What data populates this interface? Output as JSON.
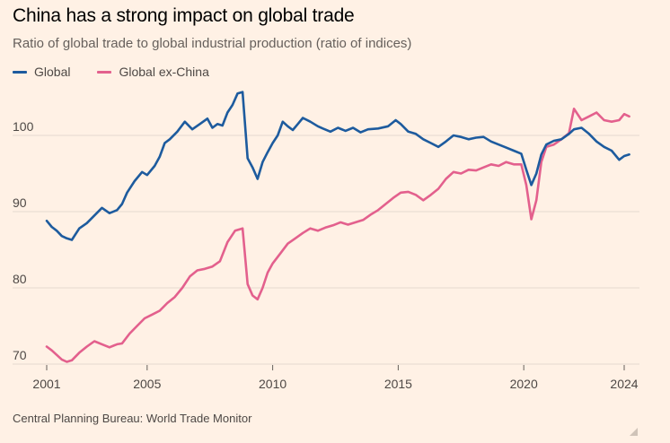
{
  "chart_data": {
    "type": "line",
    "title": "China has a strong impact on global trade",
    "subtitle": "Ratio of global trade to global industrial production (ratio of indices)",
    "source": "Central Planning Bureau: World Trade Monitor",
    "xlabel": "",
    "ylabel": "",
    "xlim": [
      2001,
      2024.2
    ],
    "ylim": [
      70,
      106
    ],
    "x_ticks": [
      "2001",
      "2005",
      "2010",
      "2015",
      "2020",
      "2024"
    ],
    "y_ticks": [
      "70",
      "80",
      "90",
      "100"
    ],
    "grid": true,
    "legend_position": "top-left",
    "series": [
      {
        "name": "Global",
        "color": "#1d5b9e",
        "points": [
          [
            2001.0,
            88.8
          ],
          [
            2001.2,
            88.0
          ],
          [
            2001.4,
            87.5
          ],
          [
            2001.6,
            86.8
          ],
          [
            2001.8,
            86.5
          ],
          [
            2002.0,
            86.3
          ],
          [
            2002.3,
            87.8
          ],
          [
            2002.6,
            88.5
          ],
          [
            2002.9,
            89.5
          ],
          [
            2003.2,
            90.5
          ],
          [
            2003.5,
            89.8
          ],
          [
            2003.8,
            90.2
          ],
          [
            2004.0,
            91.0
          ],
          [
            2004.2,
            92.5
          ],
          [
            2004.5,
            94.0
          ],
          [
            2004.8,
            95.2
          ],
          [
            2005.0,
            94.8
          ],
          [
            2005.3,
            96.0
          ],
          [
            2005.5,
            97.2
          ],
          [
            2005.7,
            99.0
          ],
          [
            2005.9,
            99.5
          ],
          [
            2006.2,
            100.5
          ],
          [
            2006.5,
            101.8
          ],
          [
            2006.8,
            100.8
          ],
          [
            2007.1,
            101.5
          ],
          [
            2007.4,
            102.2
          ],
          [
            2007.6,
            101.0
          ],
          [
            2007.8,
            101.5
          ],
          [
            2008.0,
            101.3
          ],
          [
            2008.2,
            103.0
          ],
          [
            2008.4,
            104.0
          ],
          [
            2008.6,
            105.5
          ],
          [
            2008.8,
            105.7
          ],
          [
            2009.0,
            97.0
          ],
          [
            2009.2,
            95.8
          ],
          [
            2009.4,
            94.3
          ],
          [
            2009.6,
            96.5
          ],
          [
            2009.8,
            97.8
          ],
          [
            2010.0,
            99.0
          ],
          [
            2010.2,
            100.0
          ],
          [
            2010.4,
            101.8
          ],
          [
            2010.6,
            101.2
          ],
          [
            2010.8,
            100.7
          ],
          [
            2011.0,
            101.5
          ],
          [
            2011.2,
            102.3
          ],
          [
            2011.5,
            101.8
          ],
          [
            2011.8,
            101.2
          ],
          [
            2012.0,
            100.9
          ],
          [
            2012.3,
            100.5
          ],
          [
            2012.6,
            101.0
          ],
          [
            2012.9,
            100.6
          ],
          [
            2013.2,
            101.0
          ],
          [
            2013.5,
            100.4
          ],
          [
            2013.8,
            100.8
          ],
          [
            2014.2,
            100.9
          ],
          [
            2014.6,
            101.2
          ],
          [
            2014.9,
            102.0
          ],
          [
            2015.1,
            101.5
          ],
          [
            2015.4,
            100.5
          ],
          [
            2015.7,
            100.2
          ],
          [
            2016.0,
            99.5
          ],
          [
            2016.3,
            99.0
          ],
          [
            2016.6,
            98.5
          ],
          [
            2016.9,
            99.2
          ],
          [
            2017.2,
            100.0
          ],
          [
            2017.5,
            99.8
          ],
          [
            2017.8,
            99.5
          ],
          [
            2018.1,
            99.7
          ],
          [
            2018.4,
            99.8
          ],
          [
            2018.7,
            99.2
          ],
          [
            2019.0,
            98.8
          ],
          [
            2019.3,
            98.4
          ],
          [
            2019.6,
            98.0
          ],
          [
            2019.9,
            97.6
          ],
          [
            2020.1,
            95.5
          ],
          [
            2020.3,
            93.5
          ],
          [
            2020.5,
            95.0
          ],
          [
            2020.7,
            97.5
          ],
          [
            2020.9,
            98.8
          ],
          [
            2021.2,
            99.3
          ],
          [
            2021.5,
            99.5
          ],
          [
            2021.8,
            100.2
          ],
          [
            2022.0,
            100.8
          ],
          [
            2022.3,
            101.0
          ],
          [
            2022.6,
            100.2
          ],
          [
            2022.9,
            99.2
          ],
          [
            2023.2,
            98.5
          ],
          [
            2023.5,
            98.0
          ],
          [
            2023.8,
            96.8
          ],
          [
            2024.0,
            97.3
          ],
          [
            2024.2,
            97.5
          ]
        ]
      },
      {
        "name": "Global ex-China",
        "color": "#e3608d",
        "points": [
          [
            2001.0,
            72.3
          ],
          [
            2001.2,
            71.8
          ],
          [
            2001.4,
            71.2
          ],
          [
            2001.6,
            70.6
          ],
          [
            2001.8,
            70.3
          ],
          [
            2002.0,
            70.5
          ],
          [
            2002.3,
            71.5
          ],
          [
            2002.6,
            72.3
          ],
          [
            2002.9,
            73.0
          ],
          [
            2003.2,
            72.6
          ],
          [
            2003.5,
            72.2
          ],
          [
            2003.8,
            72.6
          ],
          [
            2004.0,
            72.7
          ],
          [
            2004.3,
            74.0
          ],
          [
            2004.6,
            75.0
          ],
          [
            2004.9,
            76.0
          ],
          [
            2005.2,
            76.5
          ],
          [
            2005.5,
            77.0
          ],
          [
            2005.8,
            78.0
          ],
          [
            2006.1,
            78.8
          ],
          [
            2006.4,
            80.0
          ],
          [
            2006.7,
            81.5
          ],
          [
            2007.0,
            82.3
          ],
          [
            2007.3,
            82.5
          ],
          [
            2007.6,
            82.8
          ],
          [
            2007.9,
            83.5
          ],
          [
            2008.2,
            86.0
          ],
          [
            2008.5,
            87.5
          ],
          [
            2008.8,
            87.8
          ],
          [
            2009.0,
            80.5
          ],
          [
            2009.2,
            79.0
          ],
          [
            2009.4,
            78.5
          ],
          [
            2009.6,
            80.0
          ],
          [
            2009.8,
            82.0
          ],
          [
            2010.0,
            83.2
          ],
          [
            2010.3,
            84.5
          ],
          [
            2010.6,
            85.8
          ],
          [
            2010.9,
            86.5
          ],
          [
            2011.2,
            87.2
          ],
          [
            2011.5,
            87.8
          ],
          [
            2011.8,
            87.5
          ],
          [
            2012.1,
            87.9
          ],
          [
            2012.4,
            88.2
          ],
          [
            2012.7,
            88.6
          ],
          [
            2013.0,
            88.3
          ],
          [
            2013.3,
            88.6
          ],
          [
            2013.6,
            88.9
          ],
          [
            2013.9,
            89.6
          ],
          [
            2014.2,
            90.2
          ],
          [
            2014.5,
            91.0
          ],
          [
            2014.8,
            91.8
          ],
          [
            2015.1,
            92.5
          ],
          [
            2015.4,
            92.6
          ],
          [
            2015.7,
            92.2
          ],
          [
            2016.0,
            91.5
          ],
          [
            2016.3,
            92.2
          ],
          [
            2016.6,
            93.0
          ],
          [
            2016.9,
            94.3
          ],
          [
            2017.2,
            95.2
          ],
          [
            2017.5,
            95.0
          ],
          [
            2017.8,
            95.5
          ],
          [
            2018.1,
            95.4
          ],
          [
            2018.4,
            95.8
          ],
          [
            2018.7,
            96.2
          ],
          [
            2019.0,
            96.0
          ],
          [
            2019.3,
            96.5
          ],
          [
            2019.6,
            96.2
          ],
          [
            2019.9,
            96.2
          ],
          [
            2020.1,
            93.5
          ],
          [
            2020.3,
            89.0
          ],
          [
            2020.5,
            91.5
          ],
          [
            2020.7,
            96.5
          ],
          [
            2020.9,
            98.5
          ],
          [
            2021.2,
            98.8
          ],
          [
            2021.5,
            99.5
          ],
          [
            2021.8,
            100.3
          ],
          [
            2022.0,
            103.5
          ],
          [
            2022.3,
            102.0
          ],
          [
            2022.6,
            102.5
          ],
          [
            2022.9,
            103.0
          ],
          [
            2023.2,
            102.0
          ],
          [
            2023.5,
            101.8
          ],
          [
            2023.8,
            102.0
          ],
          [
            2024.0,
            102.8
          ],
          [
            2024.2,
            102.5
          ]
        ]
      }
    ]
  }
}
